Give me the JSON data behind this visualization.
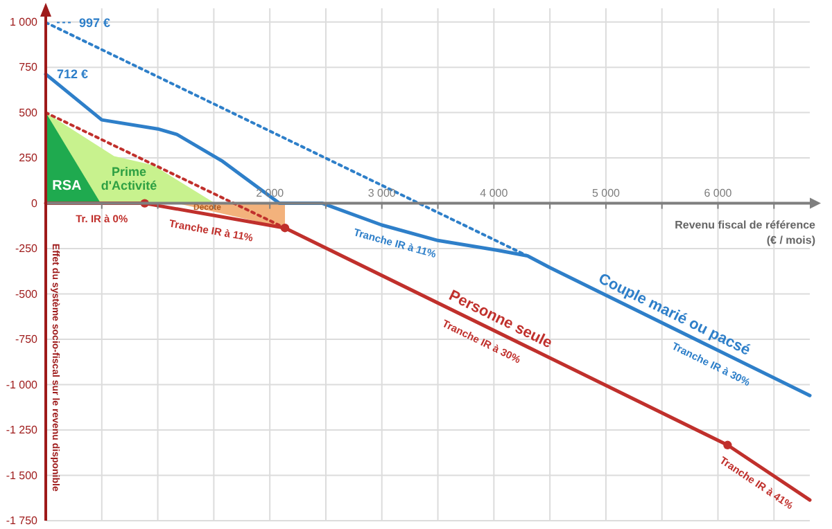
{
  "chart_data": {
    "type": "line",
    "xlabel": "Revenu fiscal de référence\n(€ / mois)",
    "ylabel": "Effet du système socio-fiscal sur le revenu disponible",
    "xlim": [
      0,
      6820
    ],
    "ylim": [
      -1750,
      1075
    ],
    "xticks": [
      {
        "value": 500,
        "label": null
      },
      {
        "value": 1000,
        "label": null
      },
      {
        "value": 1500,
        "label": null
      },
      {
        "value": 2000,
        "label": "2 000"
      },
      {
        "value": 2500,
        "label": null
      },
      {
        "value": 3000,
        "label": "3 000"
      },
      {
        "value": 3500,
        "label": null
      },
      {
        "value": 4000,
        "label": "4 000"
      },
      {
        "value": 4500,
        "label": null
      },
      {
        "value": 5000,
        "label": "5 000"
      },
      {
        "value": 5500,
        "label": null
      },
      {
        "value": 6000,
        "label": "6 000"
      },
      {
        "value": 6500,
        "label": null
      }
    ],
    "yticks": [
      {
        "value": -1750,
        "label": "-1 750"
      },
      {
        "value": -1500,
        "label": "-1 500"
      },
      {
        "value": -1250,
        "label": "-1 250"
      },
      {
        "value": -1000,
        "label": "-1 000"
      },
      -750,
      -500,
      -250,
      0,
      250,
      500,
      750,
      {
        "value": 1000,
        "label": "1 000"
      }
    ],
    "grid": true,
    "series": [
      {
        "type": "area",
        "name": "Prime d'Activité",
        "color": "#c8f28e",
        "x": [
          0,
          610,
          960,
          1510
        ],
        "values": [
          500,
          260,
          210,
          0
        ]
      },
      {
        "type": "area",
        "name": "RSA",
        "color": "#1faa4f",
        "x": [
          0,
          490
        ],
        "values": [
          500,
          0
        ]
      },
      {
        "type": "area",
        "name": "Décote",
        "color": "#f3b27c",
        "x": [
          1170,
          2135
        ],
        "values": [
          0,
          -136
        ]
      },
      {
        "color": "#2e7fc9",
        "line_style": "dotted",
        "x": [
          0,
          4300
        ],
        "values": [
          997,
          -290
        ]
      },
      {
        "color": "#c0302c",
        "line_style": "dotted",
        "x": [
          0,
          2135
        ],
        "values": [
          500,
          -136
        ]
      },
      {
        "name": "Couple marié ou pacsé",
        "color": "#2e7fc9",
        "line_style": "solid",
        "x": [
          0,
          500,
          1000,
          1170,
          1570,
          2085,
          2470,
          3000,
          3500,
          4025,
          4300,
          4500,
          6820
        ],
        "values": [
          712,
          460,
          410,
          380,
          235,
          0,
          0,
          -120,
          -205,
          -258,
          -290,
          -355,
          -1060
        ]
      },
      {
        "name": "Personne seule",
        "color": "#c0302c",
        "line_style": "solid",
        "x": [
          0,
          883,
          2135,
          6086,
          6820
        ],
        "values": [
          0,
          0,
          -136,
          -1333,
          -1636
        ]
      },
      {
        "type": "scatter",
        "color": "#c0302c",
        "marker": "circle",
        "x": [
          883,
          2135,
          6086
        ],
        "values": [
          0,
          -136,
          -1333
        ]
      }
    ],
    "annotations": [
      {
        "text": "997 €",
        "x": 0,
        "y": 997
      },
      {
        "text": "712 €",
        "x": 0,
        "y": 712
      },
      "Tr. IR à 0%",
      "Tranche IR à 11%",
      "Tranche IR à 11%",
      "Tranche IR à 30%",
      "Tranche IR à 30%",
      "Tranche IR à 41%"
    ]
  }
}
